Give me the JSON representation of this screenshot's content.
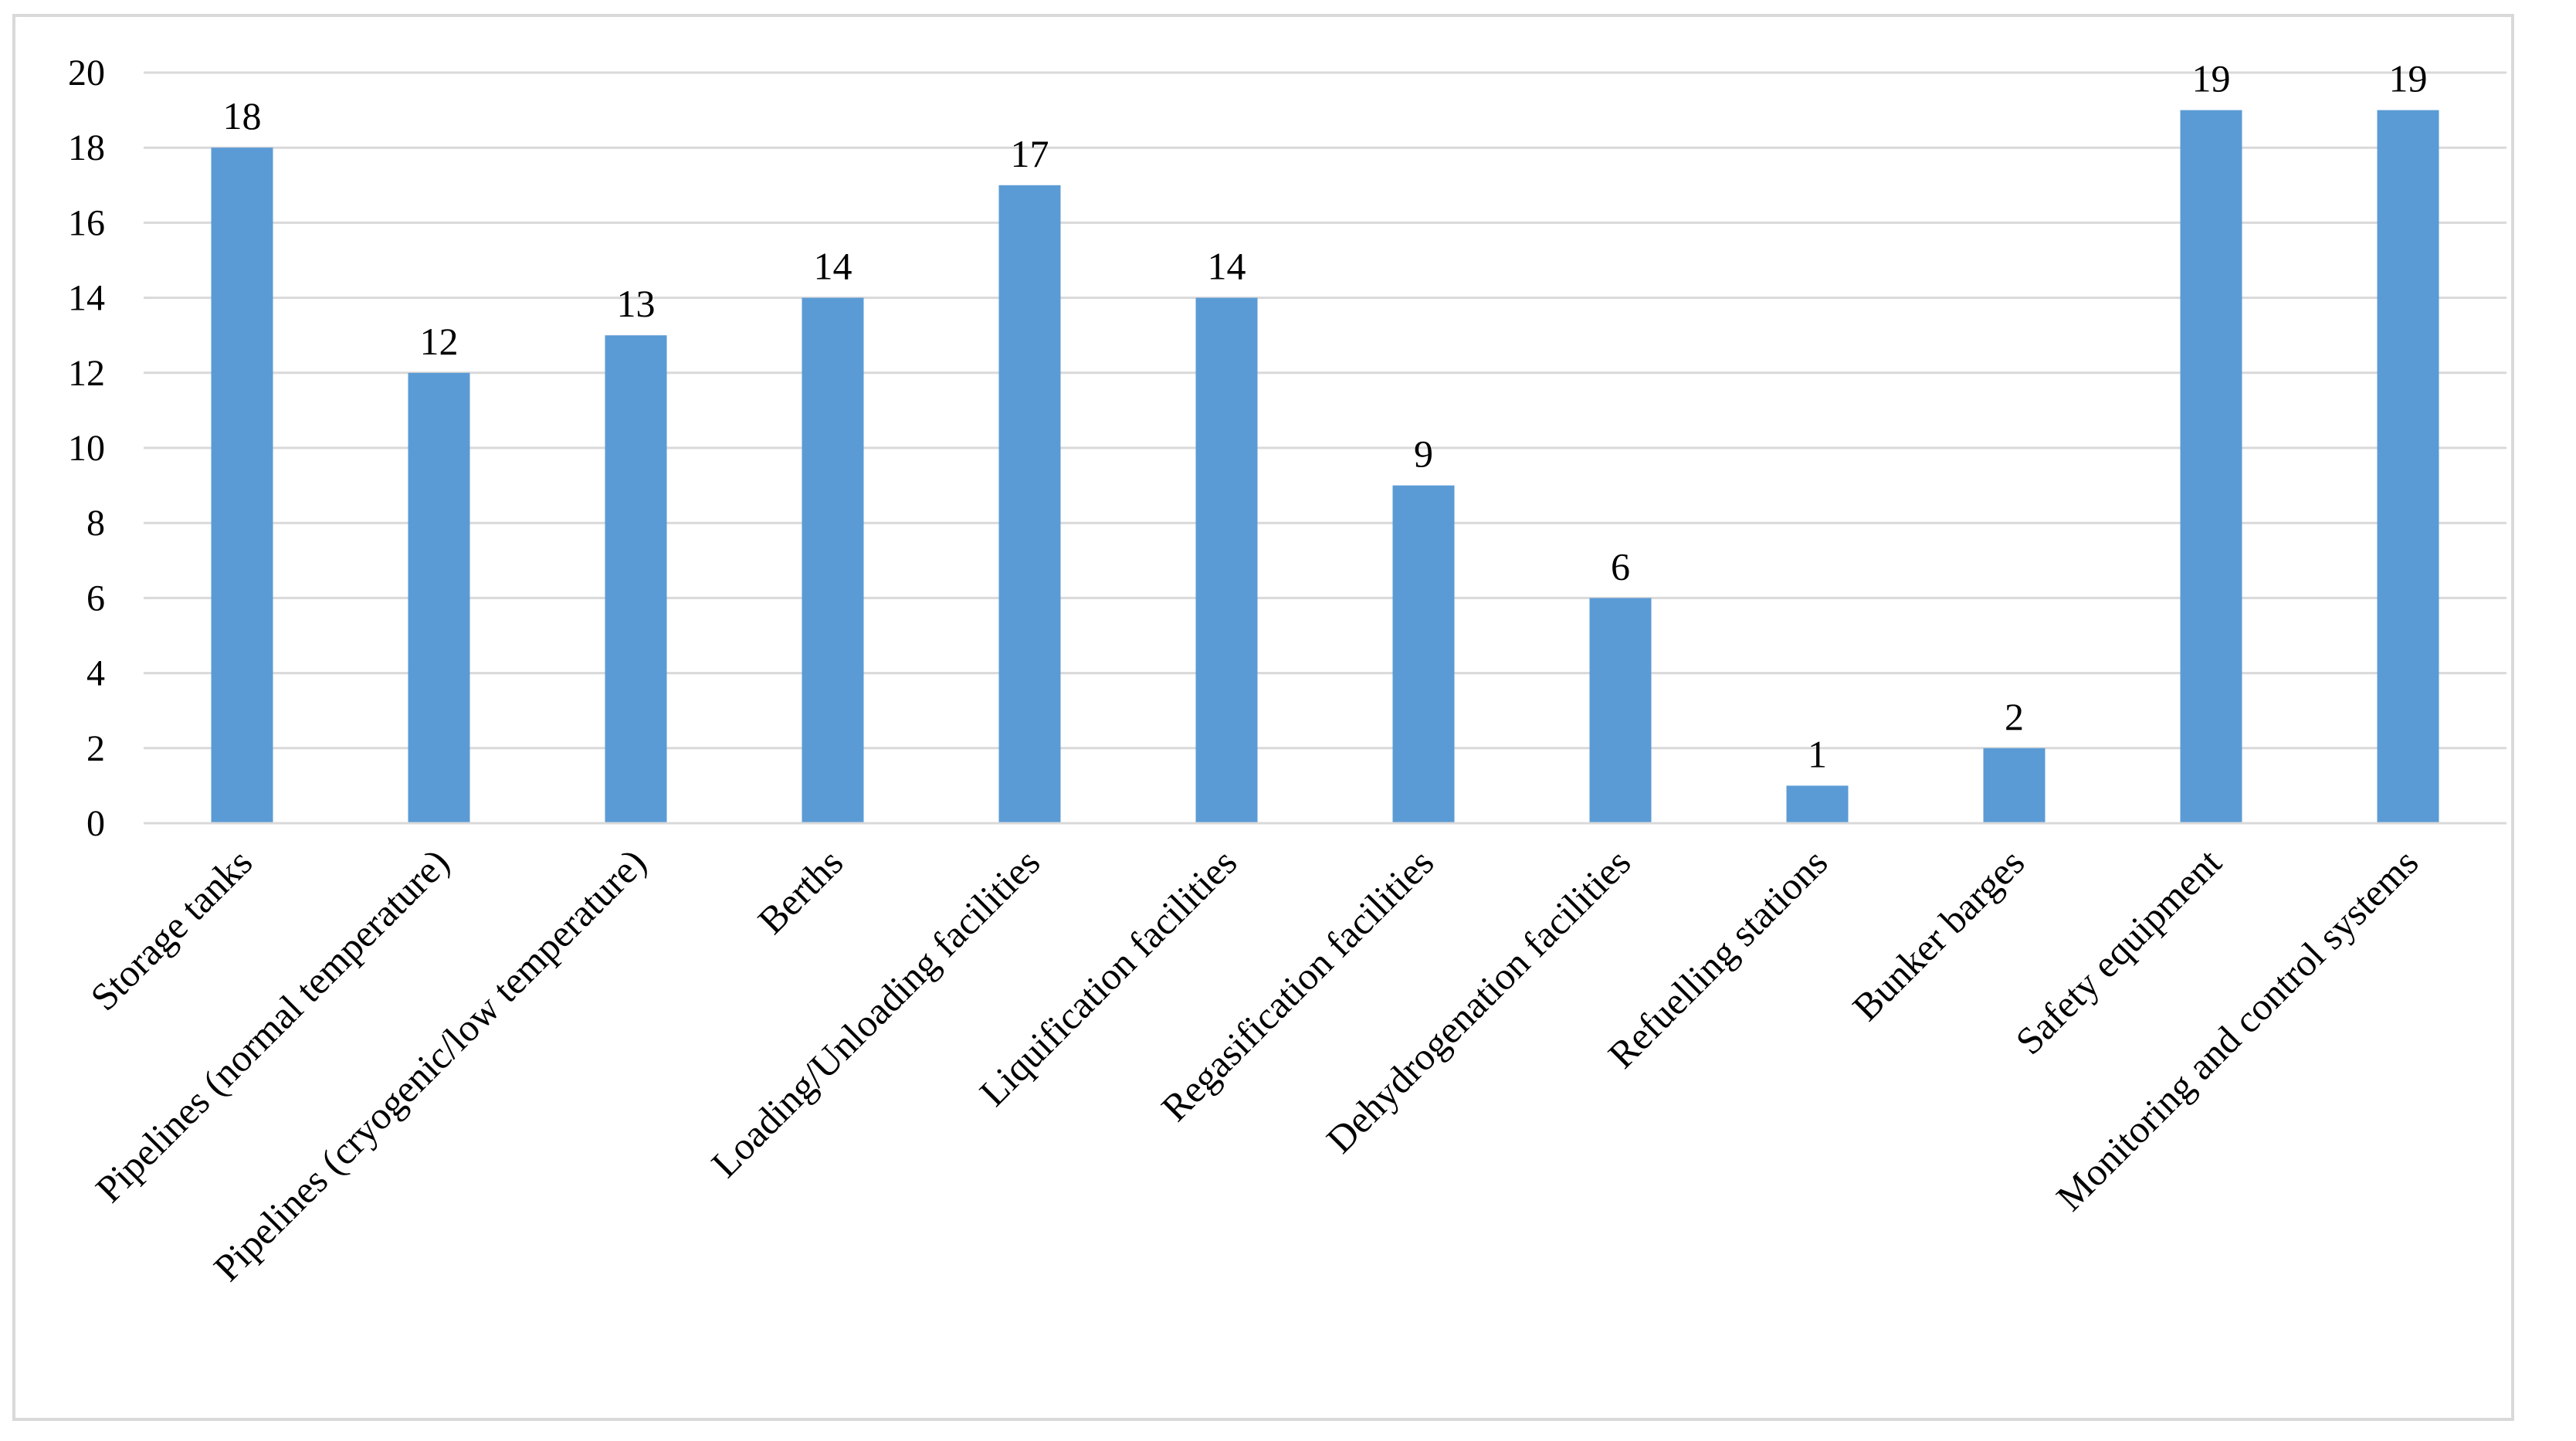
{
  "chart_data": {
    "type": "bar",
    "title": "",
    "xlabel": "",
    "ylabel": "",
    "ylim": [
      0,
      20
    ],
    "yticks": [
      0,
      2,
      4,
      6,
      8,
      10,
      12,
      14,
      16,
      18,
      20
    ],
    "grid": true,
    "legend": "none",
    "bar_color": "#5b9bd5",
    "grid_color": "#d9d9d9",
    "categories": [
      "Storage tanks",
      "Pipelines (normal temperature)",
      "Pipelines (cryogenic/low temperature)",
      "Berths",
      "Loading/Unloading facilities",
      "Liquification facilities",
      "Regasification facilities",
      "Dehydrogenation facilities",
      "Refuelling stations",
      "Bunker barges",
      "Safety equipment",
      "Monitoring and control systems"
    ],
    "values": [
      18,
      12,
      13,
      14,
      17,
      14,
      9,
      6,
      1,
      2,
      19,
      19
    ],
    "data_labels": [
      "18",
      "12",
      "13",
      "14",
      "17",
      "14",
      "9",
      "6",
      "1",
      "2",
      "19",
      "19"
    ]
  }
}
